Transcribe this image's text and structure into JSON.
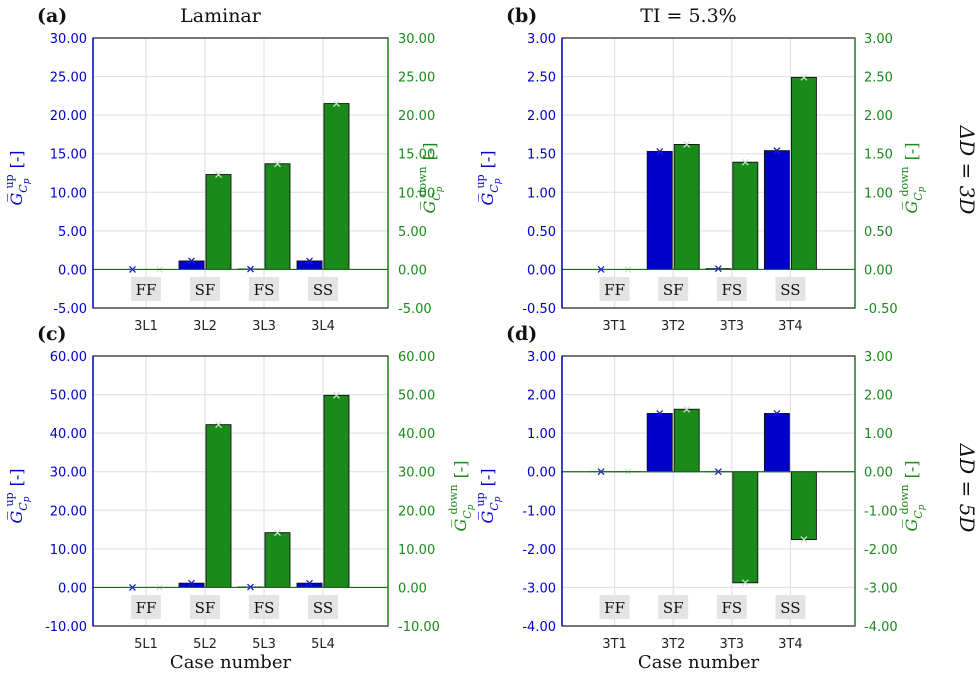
{
  "column_titles": [
    "Laminar",
    "TI = 5.3%"
  ],
  "row_labels": [
    "ΔD = 3D",
    "ΔD = 5D"
  ],
  "y_label_left": "G̅ Cₚ up [-]",
  "y_label_right": "G̅ Cₚ down [-]",
  "xlabel": "Case number",
  "colors": {
    "up": "#0000cc",
    "down": "#1a8a1a",
    "marker_up": "#1a1acc",
    "marker_down": "#c8e6c8"
  },
  "chart_data": [
    {
      "panel": "(a)",
      "title": "Laminar",
      "type": "bar",
      "categories": [
        "3L1",
        "3L2",
        "3L3",
        "3L4"
      ],
      "case_labels": [
        "FF",
        "SF",
        "FS",
        "SS"
      ],
      "ylim": [
        -5,
        30
      ],
      "yticks": [
        "-5.00",
        "0.00",
        "5.00",
        "10.00",
        "15.00",
        "20.00",
        "25.00",
        "30.00"
      ],
      "xlabel": "",
      "series": [
        {
          "name": "up",
          "values": [
            0.0,
            1.1,
            0.05,
            1.1
          ]
        },
        {
          "name": "down",
          "values": [
            0.0,
            12.3,
            13.7,
            21.5
          ]
        }
      ]
    },
    {
      "panel": "(b)",
      "title": "TI = 5.3%",
      "type": "bar",
      "categories": [
        "3T1",
        "3T2",
        "3T3",
        "3T4"
      ],
      "case_labels": [
        "FF",
        "SF",
        "FS",
        "SS"
      ],
      "ylim": [
        -0.5,
        3.0
      ],
      "yticks": [
        "-0.50",
        "0.00",
        "0.50",
        "1.00",
        "1.50",
        "2.00",
        "2.50",
        "3.00"
      ],
      "xlabel": "",
      "series": [
        {
          "name": "up",
          "values": [
            0.0,
            1.53,
            0.01,
            1.54
          ]
        },
        {
          "name": "down",
          "values": [
            0.0,
            1.62,
            1.39,
            2.49
          ]
        }
      ]
    },
    {
      "panel": "(c)",
      "title": "",
      "type": "bar",
      "categories": [
        "5L1",
        "5L2",
        "5L3",
        "5L4"
      ],
      "case_labels": [
        "FF",
        "SF",
        "FS",
        "SS"
      ],
      "ylim": [
        -10,
        60
      ],
      "yticks": [
        "-10.00",
        "0.00",
        "10.00",
        "20.00",
        "30.00",
        "40.00",
        "50.00",
        "60.00"
      ],
      "xlabel": "Case number",
      "series": [
        {
          "name": "up",
          "values": [
            0.0,
            1.1,
            0.1,
            1.1
          ]
        },
        {
          "name": "down",
          "values": [
            0.0,
            42.2,
            14.2,
            49.8
          ]
        }
      ]
    },
    {
      "panel": "(d)",
      "title": "",
      "type": "bar",
      "categories": [
        "3T1",
        "3T2",
        "3T3",
        "3T4"
      ],
      "case_labels": [
        "FF",
        "SF",
        "FS",
        "SS"
      ],
      "ylim": [
        -4,
        3
      ],
      "yticks": [
        "-4.00",
        "-3.00",
        "-2.00",
        "-1.00",
        "0.00",
        "1.00",
        "2.00",
        "3.00"
      ],
      "xlabel": "Case number",
      "series": [
        {
          "name": "up",
          "values": [
            0.0,
            1.51,
            0.0,
            1.51
          ]
        },
        {
          "name": "down",
          "values": [
            0.0,
            1.62,
            -2.88,
            -1.76
          ]
        }
      ]
    }
  ]
}
